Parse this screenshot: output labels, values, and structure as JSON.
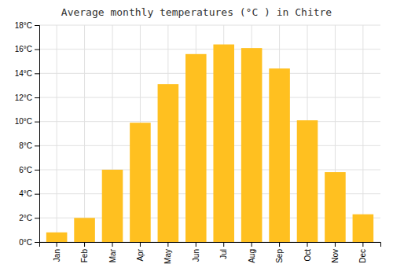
{
  "chart_data": {
    "type": "bar",
    "title": "Average monthly temperatures (°C ) in Chitre",
    "categories": [
      "Jan",
      "Feb",
      "Mar",
      "Apr",
      "May",
      "Jun",
      "Jul",
      "Aug",
      "Sep",
      "Oct",
      "Nov",
      "Dec"
    ],
    "values": [
      0.8,
      2.0,
      6.0,
      9.9,
      13.1,
      15.6,
      16.4,
      16.1,
      14.4,
      10.1,
      5.8,
      2.3
    ],
    "color": "#FFC020",
    "ylim": [
      0,
      18
    ],
    "yticks": [
      {
        "value": 0,
        "label": "0°C"
      },
      {
        "value": 2,
        "label": "2°C"
      },
      {
        "value": 4,
        "label": "4°C"
      },
      {
        "value": 6,
        "label": "6°C"
      },
      {
        "value": 8,
        "label": "8°C"
      },
      {
        "value": 10,
        "label": "10°C"
      },
      {
        "value": 12,
        "label": "12°C"
      },
      {
        "value": 14,
        "label": "14°C"
      },
      {
        "value": 16,
        "label": "16°C"
      },
      {
        "value": 18,
        "label": "18°C"
      }
    ],
    "grid": true
  }
}
